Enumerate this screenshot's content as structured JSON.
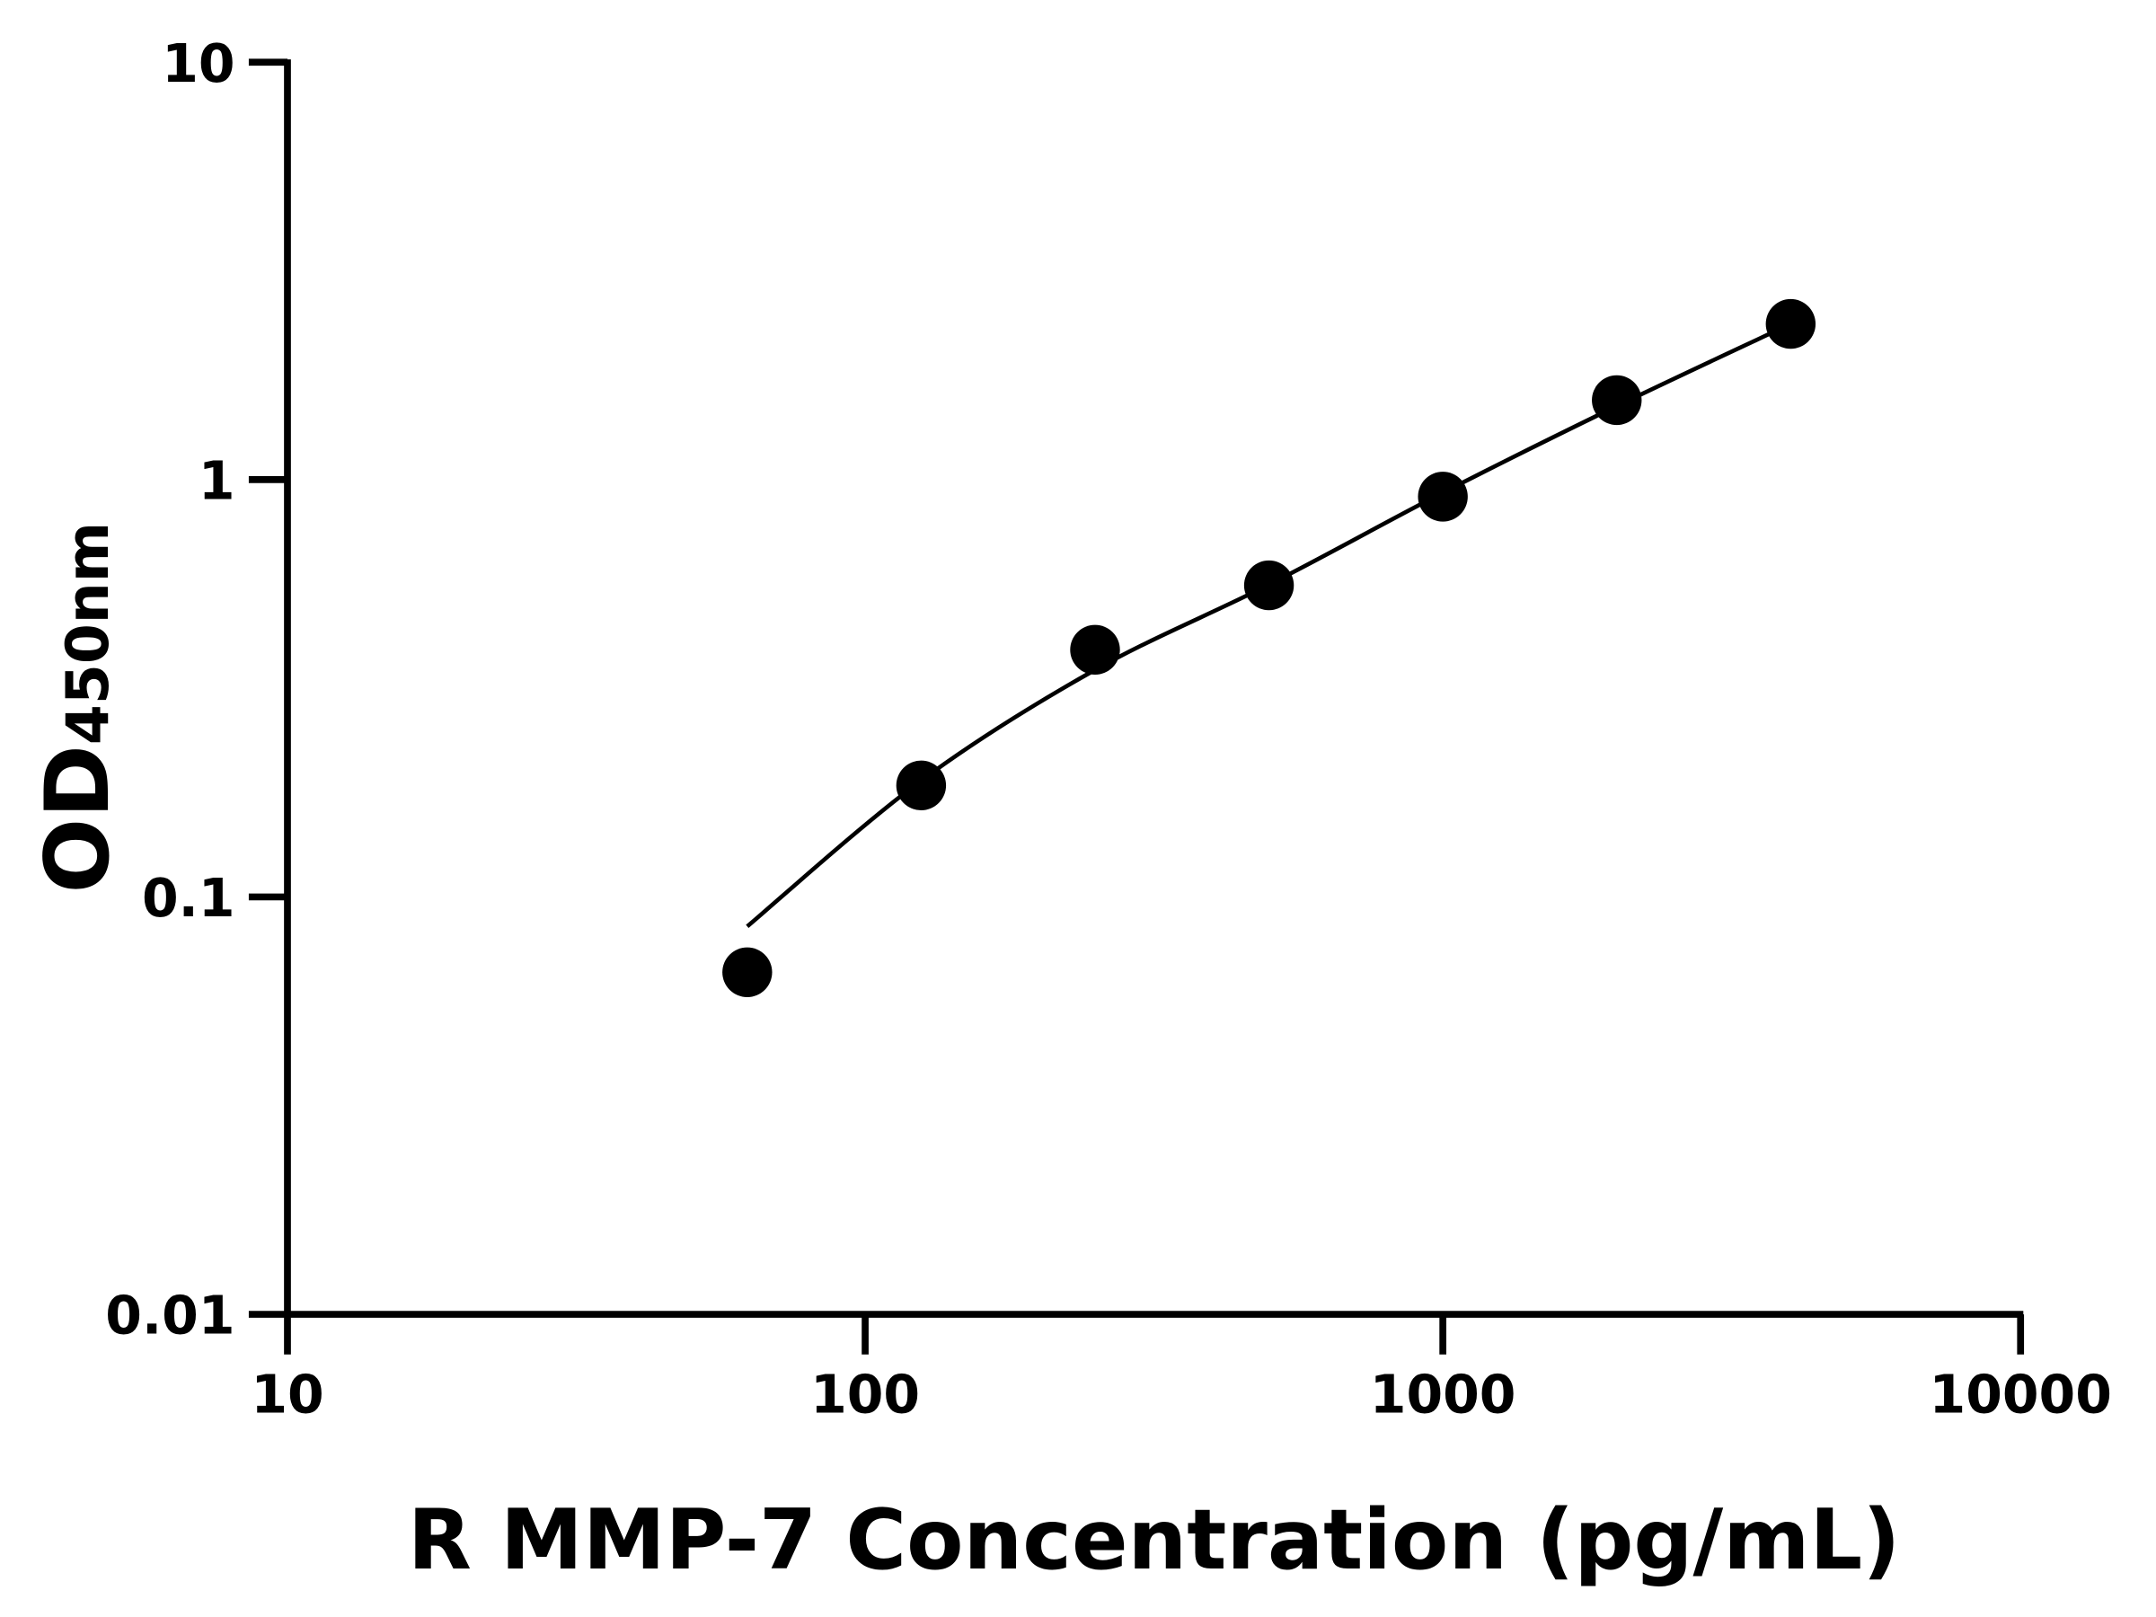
{
  "chart_data": {
    "type": "scatter",
    "xlabel": "R MMP-7 Concentration (pg/mL)",
    "ylabel_main": "OD",
    "ylabel_sub": "450nm",
    "xscale": "log",
    "yscale": "log",
    "xlim": [
      10,
      10000
    ],
    "ylim": [
      0.01,
      10
    ],
    "xticks": [
      "10",
      "100",
      "1000",
      "10000"
    ],
    "yticks": [
      "0.01",
      "0.1",
      "1",
      "10"
    ],
    "grid": false,
    "points": {
      "x": [
        62.5,
        125,
        250,
        500,
        1000,
        2000,
        4000
      ],
      "y": [
        0.066,
        0.185,
        0.391,
        0.558,
        0.91,
        1.55,
        2.36
      ]
    },
    "fit_curve": {
      "x": [
        62.5,
        125,
        250,
        500,
        1000,
        2000,
        4000
      ],
      "y": [
        0.085,
        0.19,
        0.35,
        0.56,
        0.93,
        1.5,
        2.36
      ]
    },
    "colors": {
      "points": "#000000",
      "curve": "#000000",
      "axes": "#000000"
    }
  }
}
